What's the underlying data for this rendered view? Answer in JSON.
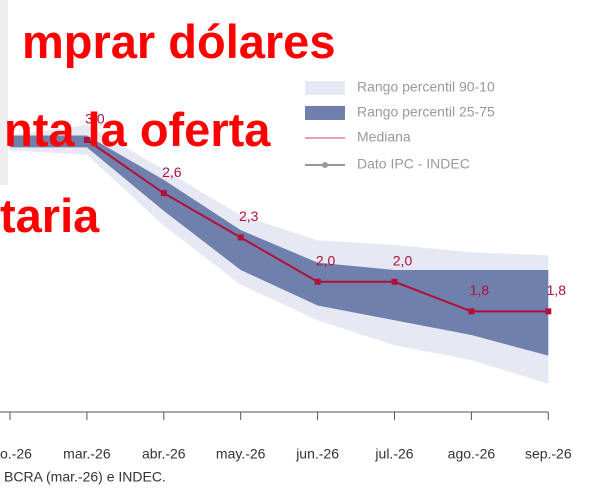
{
  "chart_data": {
    "type": "band-line",
    "headline": [
      "mprar dólares",
      "nta la oferta",
      "taria"
    ],
    "source": "BCRA (mar.-26) e INDEC.",
    "categories": [
      "o.-26",
      "mar.-26",
      "abr.-26",
      "may.-26",
      "jun.-26",
      "jul.-26",
      "ago.-26",
      "sep.-26"
    ],
    "bands": [
      {
        "name": "Rango percentil 90-10",
        "color": "#e6e9f3",
        "upper": [
          2.99,
          3.06,
          2.76,
          2.45,
          2.28,
          2.25,
          2.2,
          2.18
        ],
        "lower": [
          2.89,
          2.86,
          2.38,
          1.98,
          1.74,
          1.57,
          1.47,
          1.31
        ]
      },
      {
        "name": "Rango percentil 25-75",
        "color": "#7080ad",
        "upper": [
          2.99,
          2.99,
          2.69,
          2.35,
          2.13,
          2.08,
          2.08,
          2.08
        ],
        "lower": [
          2.91,
          2.91,
          2.48,
          2.08,
          1.84,
          1.74,
          1.64,
          1.5
        ]
      }
    ],
    "median_name": "Mediana",
    "series": [
      {
        "name": "Dato IPC - INDEC",
        "color": "#b0103a",
        "values": [
          null,
          2.96,
          2.6,
          2.3,
          2.0,
          2.0,
          1.8,
          1.8
        ],
        "value_labels": [
          null,
          "3,0",
          "2,6",
          "2,3",
          "2,0",
          "2,0",
          "1,8",
          "1,8"
        ]
      }
    ],
    "ylim": [
      1.2,
      3.2
    ]
  }
}
